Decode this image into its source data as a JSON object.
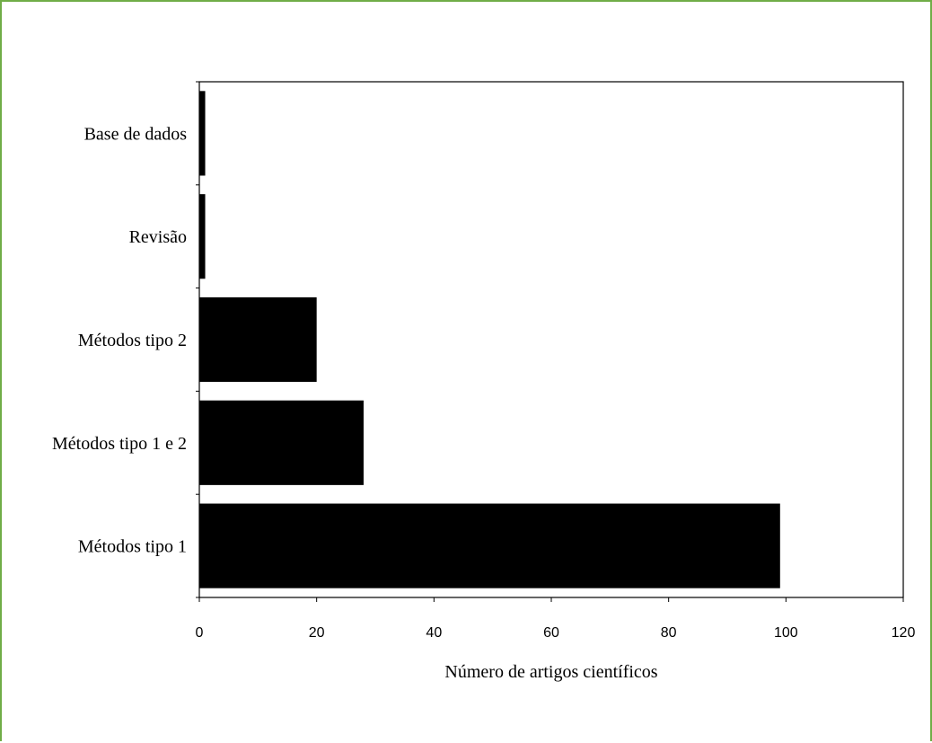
{
  "chart_data": {
    "type": "bar",
    "orientation": "horizontal",
    "categories": [
      "Base de dados",
      "Revisão",
      "Métodos tipo 2",
      "Métodos tipo 1 e 2",
      "Métodos tipo 1"
    ],
    "values": [
      1,
      1,
      20,
      28,
      99
    ],
    "xlabel": "Número de artigos científicos",
    "ylabel": "",
    "xlim": [
      0,
      120
    ],
    "xticks": [
      0,
      20,
      40,
      60,
      80,
      100,
      120
    ],
    "xtick_labels": [
      "0",
      "20",
      "40",
      "60",
      "80",
      "100",
      "120"
    ],
    "grid": false,
    "legend": "none",
    "bar_color": "#000000",
    "frame_color": "#70ad47"
  }
}
